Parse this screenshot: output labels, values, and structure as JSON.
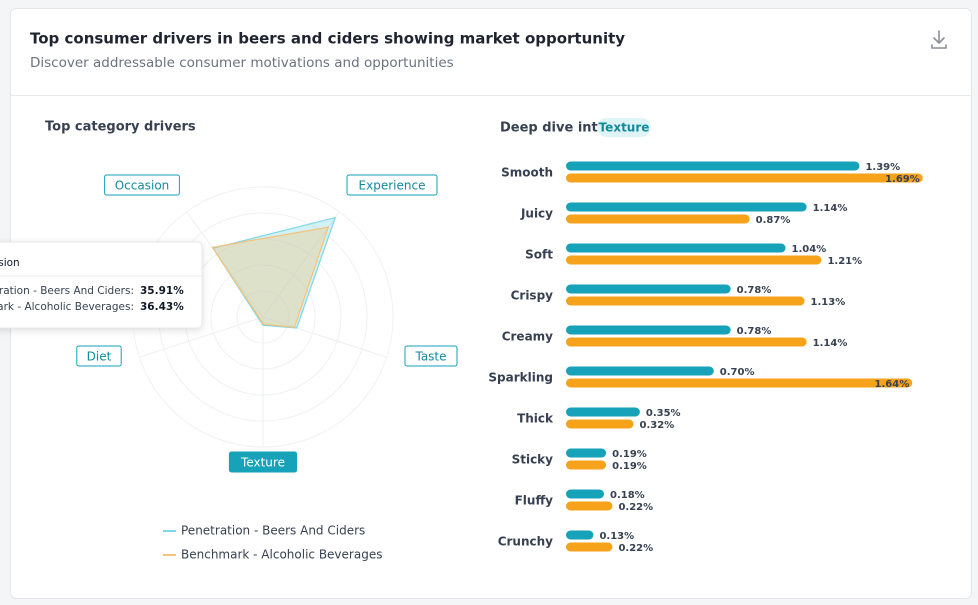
{
  "header": {
    "title": "Top consumer drivers in beers and ciders showing market opportunity",
    "subtitle": "Discover addressable consumer motivations and opportunities"
  },
  "chart_data": [
    {
      "type": "radar",
      "title": "Top category drivers",
      "categories": [
        "Occasion",
        "Experience",
        "Taste",
        "Texture",
        "Diet"
      ],
      "rlim": [
        0,
        55
      ],
      "series": [
        {
          "name": "Penetration - Beers And Ciders",
          "color": "#7fd8e3",
          "values": [
            35.91,
            52,
            15,
            3.5,
            2
          ]
        },
        {
          "name": "Benchmark - Alcoholic Beverages",
          "color": "#f6c27a",
          "values": [
            36.43,
            47,
            14,
            3,
            1.5
          ]
        }
      ],
      "tooltip": {
        "title": "Occasion",
        "rows": [
          {
            "label": "Penetration - Beers And Ciders:",
            "value": "35.91%"
          },
          {
            "label": "Benchmark - Alcoholic Beverages:",
            "value": "36.43%"
          }
        ]
      }
    },
    {
      "type": "hbar",
      "title": "Deep dive into",
      "subject": "Texture",
      "categories": [
        "Smooth",
        "Juicy",
        "Soft",
        "Crispy",
        "Creamy",
        "Sparkling",
        "Thick",
        "Sticky",
        "Fluffy",
        "Crunchy"
      ],
      "xlim": [
        0,
        1.8
      ],
      "series": [
        {
          "name": "Penetration - Beers And Ciders",
          "color": "#16a2b8",
          "values": [
            1.39,
            1.14,
            1.04,
            0.78,
            0.78,
            0.7,
            0.35,
            0.19,
            0.18,
            0.13
          ],
          "value_labels": [
            "1.39%",
            "1.14%",
            "1.04%",
            "0.78%",
            "0.78%",
            "0.70%",
            "0.35%",
            "0.19%",
            "0.18%",
            "0.13%"
          ]
        },
        {
          "name": "Benchmark - Alcoholic Beverages",
          "color": "#f7a21b",
          "values": [
            1.69,
            0.87,
            1.21,
            1.13,
            1.14,
            1.64,
            0.32,
            0.19,
            0.22,
            0.22
          ],
          "value_labels": [
            "1.69%",
            "0.87%",
            "1.21%",
            "1.13%",
            "1.14%",
            "1.64%",
            "0.32%",
            "0.19%",
            "0.22%",
            "0.22%"
          ]
        }
      ]
    }
  ]
}
